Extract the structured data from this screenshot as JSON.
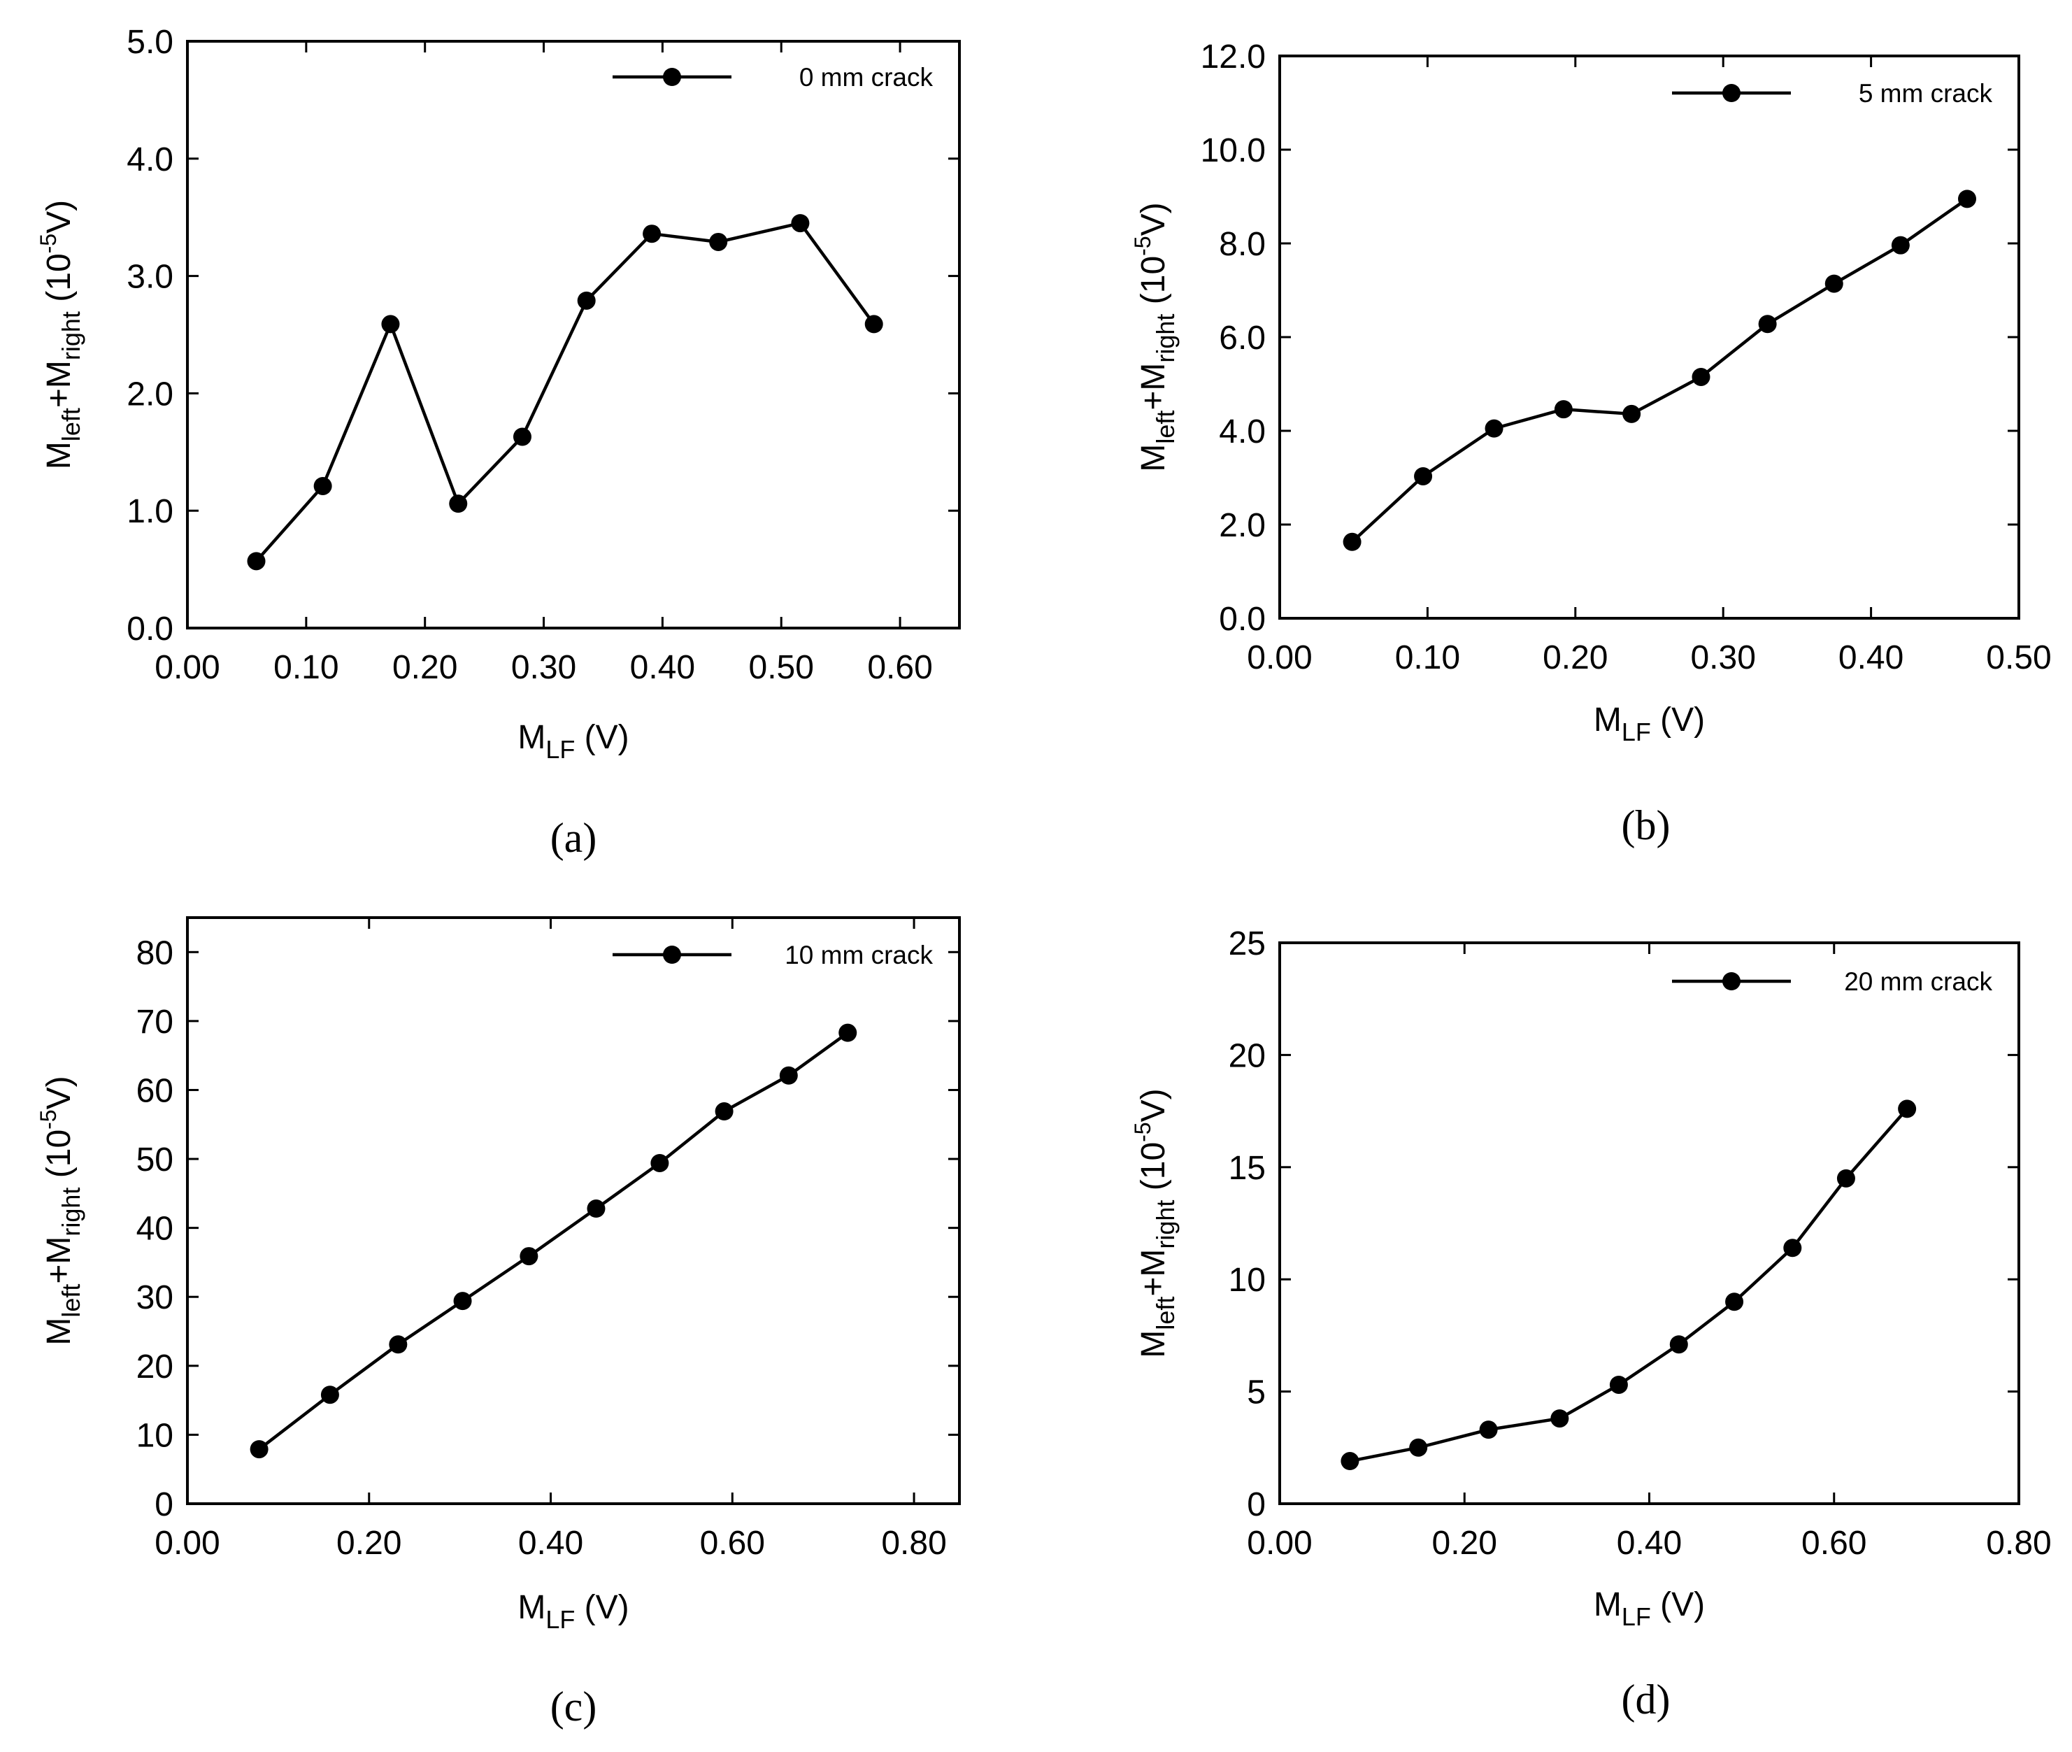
{
  "chart_data": [
    {
      "panel": "a",
      "panel_label": "(a)",
      "type": "line",
      "legend": {
        "label": "0 mm crack",
        "placement": "top-right"
      },
      "x_label": {
        "main": "M",
        "sub": "LF",
        "rest": " (V)"
      },
      "y_label": {
        "m1": "M",
        "sub1": "left",
        "plus": "+M",
        "sub2": "right",
        "pre": " (10",
        "sup": "-5",
        "post": "V)"
      },
      "xlim": [
        0,
        0.65
      ],
      "ylim": [
        0,
        5
      ],
      "xticks": [
        0,
        0.1,
        0.2,
        0.3,
        0.4,
        0.5,
        0.6
      ],
      "xtick_labels": [
        "0.00",
        "0.10",
        "0.20",
        "0.30",
        "0.40",
        "0.50",
        "0.60"
      ],
      "yticks": [
        0,
        1,
        2,
        3,
        4,
        5
      ],
      "ytick_labels": [
        "0.0",
        "1.0",
        "2.0",
        "3.0",
        "4.0",
        "5.0"
      ],
      "x": [
        0.058,
        0.114,
        0.171,
        0.228,
        0.282,
        0.336,
        0.391,
        0.447,
        0.516,
        0.578
      ],
      "y": [
        0.57,
        1.21,
        2.59,
        1.06,
        1.63,
        2.79,
        3.36,
        3.29,
        3.45,
        2.59
      ]
    },
    {
      "panel": "b",
      "panel_label": "(b)",
      "type": "line",
      "legend": {
        "label": "5 mm crack",
        "placement": "top-right"
      },
      "x_label": {
        "main": "M",
        "sub": "LF",
        "rest": " (V)"
      },
      "y_label": {
        "m1": "M",
        "sub1": "left",
        "plus": "+M",
        "sub2": "right",
        "pre": " (10",
        "sup": "-5",
        "post": "V)"
      },
      "xlim": [
        0,
        0.5
      ],
      "ylim": [
        0,
        12
      ],
      "xticks": [
        0,
        0.1,
        0.2,
        0.3,
        0.4,
        0.5
      ],
      "xtick_labels": [
        "0.00",
        "0.10",
        "0.20",
        "0.30",
        "0.40",
        "0.50"
      ],
      "yticks": [
        0,
        2,
        4,
        6,
        8,
        10,
        12
      ],
      "ytick_labels": [
        "0.0",
        "2.0",
        "4.0",
        "6.0",
        "8.0",
        "10.0",
        "12.0"
      ],
      "x": [
        0.049,
        0.097,
        0.145,
        0.192,
        0.238,
        0.285,
        0.33,
        0.375,
        0.42,
        0.465
      ],
      "y": [
        1.63,
        3.03,
        4.05,
        4.46,
        4.36,
        5.15,
        6.28,
        7.14,
        7.96,
        8.95
      ]
    },
    {
      "panel": "c",
      "panel_label": "(c)",
      "type": "line",
      "legend": {
        "label": "10 mm crack",
        "placement": "top-right"
      },
      "x_label": {
        "main": "M",
        "sub": "LF",
        "rest": " (V)"
      },
      "y_label": {
        "m1": "M",
        "sub1": "left",
        "plus": "+M",
        "sub2": "right",
        "pre": " (10",
        "sup": "-5",
        "post": "V)"
      },
      "xlim": [
        0,
        0.85
      ],
      "ylim": [
        0,
        85
      ],
      "xticks": [
        0,
        0.2,
        0.4,
        0.6,
        0.8
      ],
      "xtick_labels": [
        "0.00",
        "0.20",
        "0.40",
        "0.60",
        "0.80"
      ],
      "yticks": [
        0,
        10,
        20,
        30,
        40,
        50,
        60,
        70,
        80
      ],
      "ytick_labels": [
        "0",
        "10",
        "20",
        "30",
        "40",
        "50",
        "60",
        "70",
        "80"
      ],
      "x": [
        0.079,
        0.157,
        0.232,
        0.303,
        0.376,
        0.45,
        0.52,
        0.591,
        0.662,
        0.727
      ],
      "y": [
        7.9,
        15.8,
        23.1,
        29.4,
        35.9,
        42.8,
        49.4,
        56.9,
        62.1,
        68.3
      ]
    },
    {
      "panel": "d",
      "panel_label": "(d)",
      "type": "line",
      "legend": {
        "label": "20 mm crack",
        "placement": "top-right"
      },
      "x_label": {
        "main": "M",
        "sub": "LF",
        "rest": " (V)"
      },
      "y_label": {
        "m1": "M",
        "sub1": "left",
        "plus": "+M",
        "sub2": "right",
        "pre": " (10",
        "sup": "-5",
        "post": "V)"
      },
      "xlim": [
        0,
        0.8
      ],
      "ylim": [
        0,
        25
      ],
      "xticks": [
        0,
        0.2,
        0.4,
        0.6,
        0.8
      ],
      "xtick_labels": [
        "0.00",
        "0.20",
        "0.40",
        "0.60",
        "0.80"
      ],
      "yticks": [
        0,
        5,
        10,
        15,
        20,
        25
      ],
      "ytick_labels": [
        "0",
        "5",
        "10",
        "15",
        "20",
        "25"
      ],
      "x": [
        0.076,
        0.15,
        0.226,
        0.303,
        0.367,
        0.432,
        0.492,
        0.555,
        0.613,
        0.679
      ],
      "y": [
        1.9,
        2.5,
        3.3,
        3.8,
        5.3,
        7.1,
        9.0,
        11.4,
        14.5,
        17.6
      ]
    }
  ]
}
